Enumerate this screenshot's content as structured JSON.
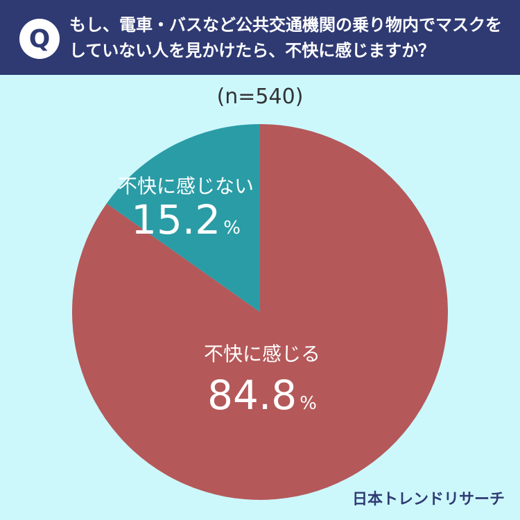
{
  "header": {
    "badge": "Q",
    "question_line1": "もし、電車・バスなど公共交通機関の乗り物内でマスクを",
    "question_line2": "していない人を見かけたら、不快に感じますか？"
  },
  "sample_size": "(n=540)",
  "chart_data": {
    "type": "pie",
    "categories": [
      "不快に感じる",
      "不快に感じない"
    ],
    "values": [
      84.8,
      15.2
    ],
    "value_labels": [
      "84.8",
      "15.2"
    ],
    "unit": "%",
    "colors": [
      "#b55859",
      "#2a9ca6"
    ],
    "start_angle_deg": 0,
    "direction": "clockwise"
  },
  "logo": "日本トレンドリサーチ"
}
